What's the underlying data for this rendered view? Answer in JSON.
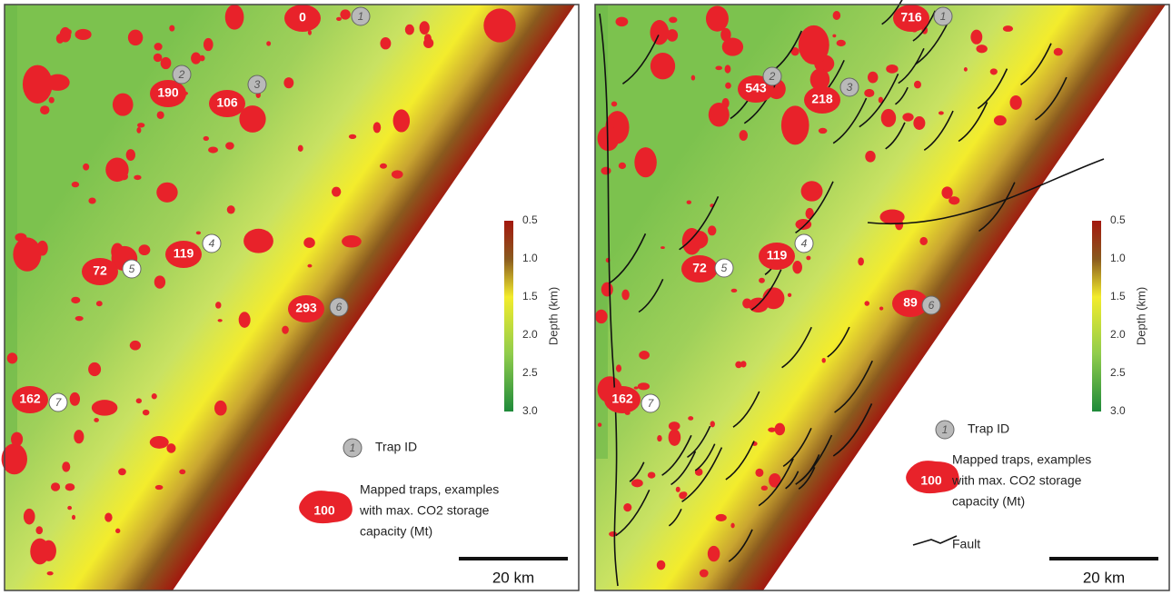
{
  "panels": [
    {
      "traps": [
        {
          "id": "1",
          "capacity": "0"
        },
        {
          "id": "2",
          "capacity": "190"
        },
        {
          "id": "3",
          "capacity": "106"
        },
        {
          "id": "4",
          "capacity": "119"
        },
        {
          "id": "5",
          "capacity": "72"
        },
        {
          "id": "6",
          "capacity": "293"
        },
        {
          "id": "7",
          "capacity": "162"
        }
      ],
      "colorbar": {
        "label": "Depth (km)",
        "ticks": [
          "0.5",
          "1.0",
          "1.5",
          "2.0",
          "2.5",
          "3.0"
        ]
      },
      "legend": {
        "trap_id_example": "1",
        "trap_id_label": "Trap ID",
        "trap_example": "100",
        "trap_label": [
          "Mapped traps, examples",
          "with max. CO2 storage",
          "capacity (Mt)"
        ]
      },
      "scale_bar": "20 km"
    },
    {
      "traps": [
        {
          "id": "1",
          "capacity": "716"
        },
        {
          "id": "2",
          "capacity": "543"
        },
        {
          "id": "3",
          "capacity": "218"
        },
        {
          "id": "4",
          "capacity": "119"
        },
        {
          "id": "5",
          "capacity": "72"
        },
        {
          "id": "6",
          "capacity": "89"
        },
        {
          "id": "7",
          "capacity": "162"
        }
      ],
      "colorbar": {
        "label": "Depth (km)",
        "ticks": [
          "0.5",
          "1.0",
          "1.5",
          "2.0",
          "2.5",
          "3.0"
        ]
      },
      "legend": {
        "trap_id_example": "1",
        "trap_id_label": "Trap ID",
        "trap_example": "100",
        "trap_label": [
          "Mapped traps, examples",
          "with max. CO2 storage",
          "capacity (Mt)"
        ],
        "fault_label": "Fault"
      },
      "scale_bar": "20 km"
    }
  ]
}
